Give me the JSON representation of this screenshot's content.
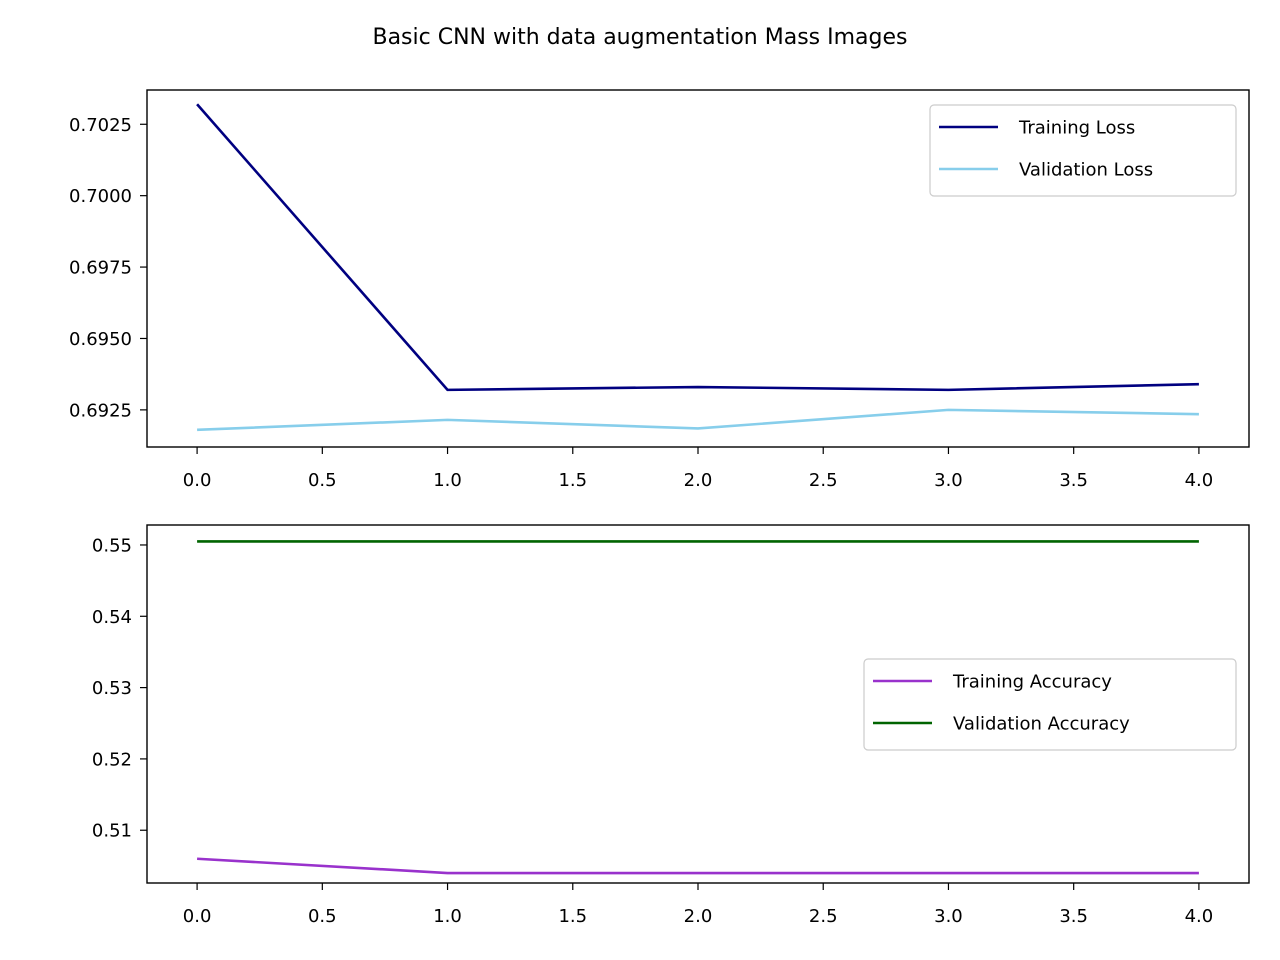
{
  "chart_data": [
    {
      "type": "line",
      "title": "Basic CNN with data augmentation Mass Images",
      "xlim": [
        -0.2,
        4.2
      ],
      "ylim": [
        0.6912,
        0.7037
      ],
      "xticks": [
        0.0,
        0.5,
        1.0,
        1.5,
        2.0,
        2.5,
        3.0,
        3.5,
        4.0
      ],
      "xtick_labels": [
        "0.0",
        "0.5",
        "1.0",
        "1.5",
        "2.0",
        "2.5",
        "3.0",
        "3.5",
        "4.0"
      ],
      "yticks": [
        0.6925,
        0.695,
        0.6975,
        0.7,
        0.7025
      ],
      "ytick_labels": [
        "0.6925",
        "0.6950",
        "0.6975",
        "0.7000",
        "0.7025"
      ],
      "legend_position": "top-right",
      "grid": false,
      "x": [
        0,
        1,
        2,
        3,
        4
      ],
      "series": [
        {
          "name": "Training Loss",
          "color": "#000080",
          "values": [
            0.7032,
            0.6932,
            0.6933,
            0.6932,
            0.6934
          ]
        },
        {
          "name": "Validation Loss",
          "color": "#87ceeb",
          "values": [
            0.6918,
            0.69215,
            0.69185,
            0.6925,
            0.69235
          ]
        }
      ]
    },
    {
      "type": "line",
      "xlim": [
        -0.2,
        4.2
      ],
      "ylim": [
        0.5026,
        0.5528
      ],
      "xticks": [
        0.0,
        0.5,
        1.0,
        1.5,
        2.0,
        2.5,
        3.0,
        3.5,
        4.0
      ],
      "xtick_labels": [
        "0.0",
        "0.5",
        "1.0",
        "1.5",
        "2.0",
        "2.5",
        "3.0",
        "3.5",
        "4.0"
      ],
      "yticks": [
        0.51,
        0.52,
        0.53,
        0.54,
        0.55
      ],
      "ytick_labels": [
        "0.51",
        "0.52",
        "0.53",
        "0.54",
        "0.55"
      ],
      "legend_position": "center-right",
      "grid": false,
      "x": [
        0,
        1,
        2,
        3,
        4
      ],
      "series": [
        {
          "name": "Training Accuracy",
          "color": "#9932cc",
          "values": [
            0.506,
            0.504,
            0.504,
            0.504,
            0.504
          ]
        },
        {
          "name": "Validation Accuracy",
          "color": "#006400",
          "values": [
            0.5505,
            0.5505,
            0.5505,
            0.5505,
            0.5505
          ]
        }
      ]
    }
  ]
}
